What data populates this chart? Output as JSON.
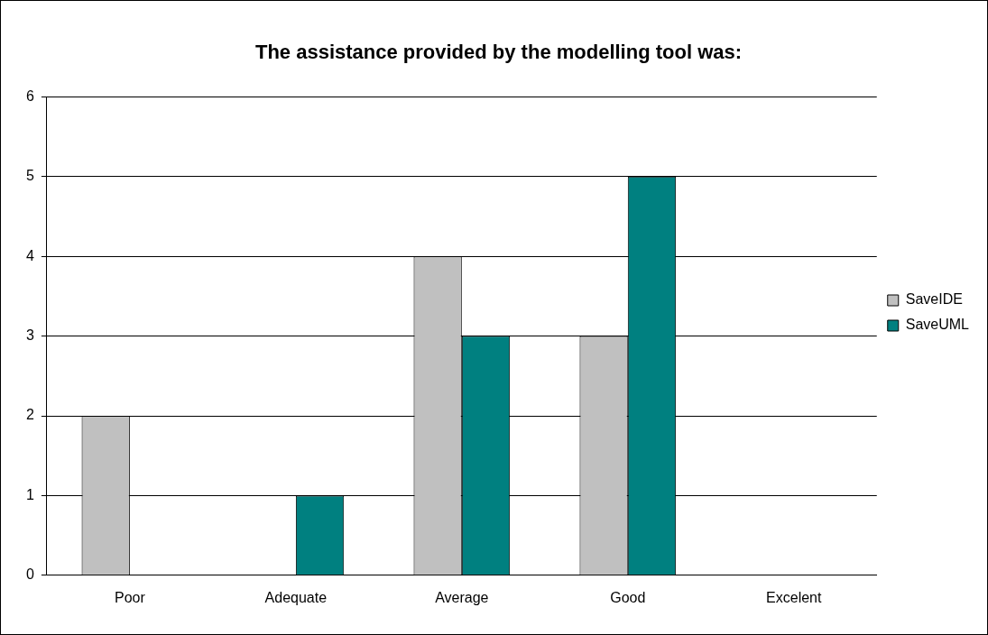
{
  "chart_data": {
    "type": "bar",
    "title": "The assistance provided by the modelling tool was:",
    "categories": [
      "Poor",
      "Adequate",
      "Average",
      "Good",
      "Excelent"
    ],
    "series": [
      {
        "name": "SaveIDE",
        "color": "#c0c0c0",
        "values": [
          2,
          0,
          4,
          3,
          0
        ]
      },
      {
        "name": "SaveUML",
        "color": "#008080",
        "values": [
          0,
          1,
          3,
          5,
          0
        ]
      }
    ],
    "ylim": [
      0,
      6
    ],
    "yticks": [
      0,
      1,
      2,
      3,
      4,
      5,
      6
    ],
    "grid": "y",
    "legend": "right"
  }
}
